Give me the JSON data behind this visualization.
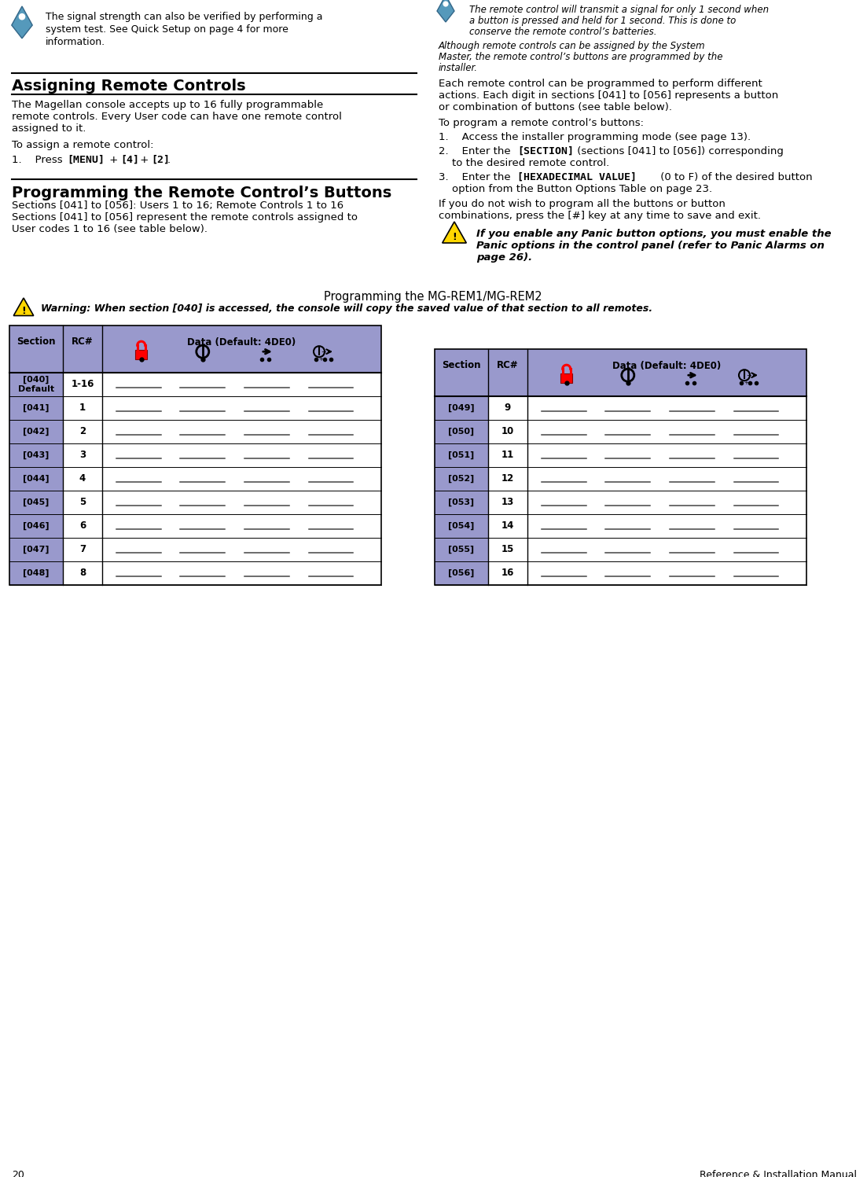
{
  "page_num": "20",
  "page_title_right": "Reference & Installation Manual",
  "bg_color": "#ffffff",
  "section_bg": "#9999cc",
  "table_title": "Programming the MG-REM1/MG-REM2",
  "warning_text": "Warning: When section [040] is accessed, the console will copy the saved value of that section to all remotes.",
  "left_rows": [
    {
      "section": "[040]\nDefault",
      "rc": "1-16"
    },
    {
      "section": "[041]",
      "rc": "1"
    },
    {
      "section": "[042]",
      "rc": "2"
    },
    {
      "section": "[043]",
      "rc": "3"
    },
    {
      "section": "[044]",
      "rc": "4"
    },
    {
      "section": "[045]",
      "rc": "5"
    },
    {
      "section": "[046]",
      "rc": "6"
    },
    {
      "section": "[047]",
      "rc": "7"
    },
    {
      "section": "[048]",
      "rc": "8"
    }
  ],
  "right_rows": [
    {
      "section": "[049]",
      "rc": "9"
    },
    {
      "section": "[050]",
      "rc": "10"
    },
    {
      "section": "[051]",
      "rc": "11"
    },
    {
      "section": "[052]",
      "rc": "12"
    },
    {
      "section": "[053]",
      "rc": "13"
    },
    {
      "section": "[054]",
      "rc": "14"
    },
    {
      "section": "[055]",
      "rc": "15"
    },
    {
      "section": "[056]",
      "rc": "16"
    }
  ],
  "top_left_lines": [
    "The signal strength can also be verified by performing a",
    "system test. See Quick Setup on page 4 for more",
    "information."
  ],
  "right_italic1_lines": [
    "The remote control will transmit a signal for only 1 second when",
    "a button is pressed and held for 1 second. This is done to",
    "conserve the remote control’s batteries."
  ],
  "right_italic2_lines": [
    "Although remote controls can be assigned by the System",
    "Master, the remote control’s buttons are programmed by the",
    "installer."
  ],
  "assigning_title": "Assigning Remote Controls",
  "assigning_body_lines": [
    "The Magellan console accepts up to 16 fully programmable",
    "remote controls. Every User code can have one remote control",
    "assigned to it."
  ],
  "assigning_assign": "To assign a remote control:",
  "programming_title": "Programming the Remote Control’s Buttons",
  "programming_subtitle": "Sections [041] to [056]: Users 1 to 16; Remote Controls 1 to 16",
  "programming_body_lines": [
    "Sections [041] to [056] represent the remote controls assigned to",
    "User codes 1 to 16 (see table below)."
  ],
  "right_body1_lines": [
    "Each remote control can be programmed to perform different",
    "actions. Each digit in sections [041] to [056] represents a button",
    "or combination of buttons (see table below)."
  ],
  "right_body2": "To program a remote control’s buttons:",
  "no_wish_lines": [
    "If you do not wish to program all the buttons or button",
    "combinations, press the [#] key at any time to save and exit."
  ],
  "panic_lines": [
    "If you enable any Panic button options, you must enable the",
    "Panic options in the control panel (refer to Panic Alarms on",
    "page 26)."
  ]
}
